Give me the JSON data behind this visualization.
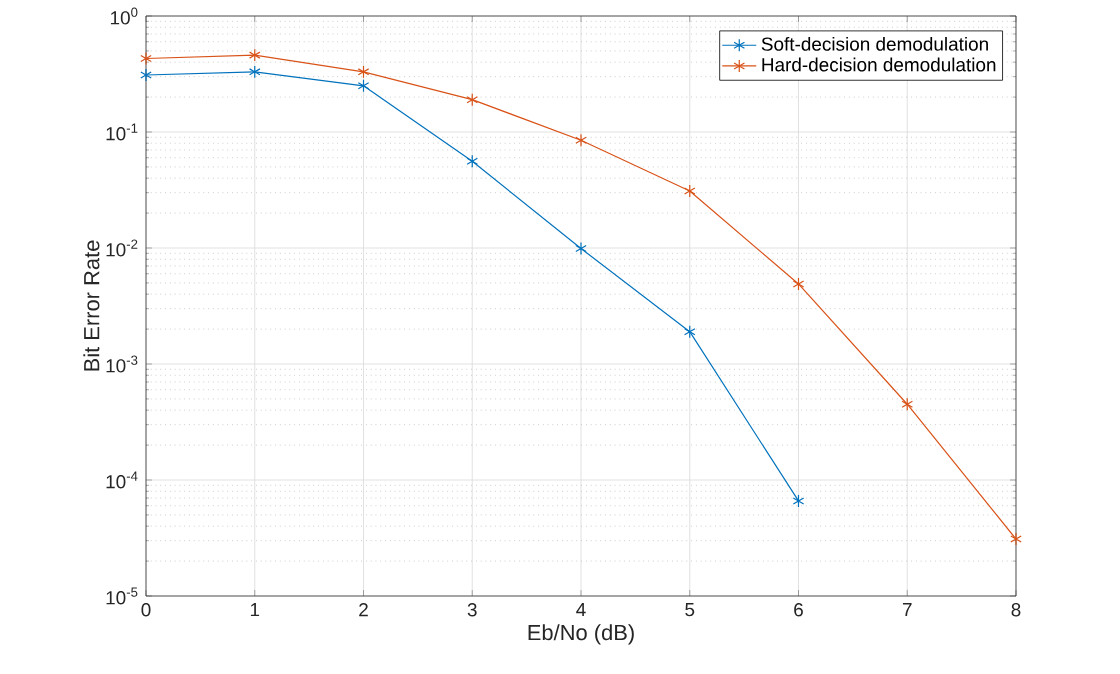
{
  "chart_data": {
    "type": "line",
    "xlabel": "Eb/No (dB)",
    "ylabel": "Bit Error Rate",
    "log": "y",
    "grid": true,
    "legend": "top right",
    "marker": "cross",
    "line_style": "solid",
    "xlim": [
      0,
      8
    ],
    "xticks": [
      0,
      1,
      2,
      3,
      4,
      5,
      6,
      7,
      8
    ],
    "ylim": [
      1e-05,
      1
    ],
    "yticks": [
      {
        "value": 1e-05,
        "label": "10$^{-5}$"
      },
      {
        "value": 0.0001,
        "label": "10$^{-4}$"
      },
      {
        "value": 0.001,
        "label": "10$^{-3}$"
      },
      {
        "value": 0.01,
        "label": "10$^{-2}$"
      },
      {
        "value": 0.1,
        "label": "10$^{-1}$"
      },
      {
        "value": 1,
        "label": "10$^{0}$"
      }
    ],
    "x": [
      0,
      1,
      2,
      3,
      4,
      5,
      6,
      7,
      8
    ],
    "series": [
      {
        "name": "Soft-decision demodulation",
        "color": "#0072bd",
        "values": [
          0.31,
          0.33,
          0.25,
          0.056,
          0.0099,
          0.0019,
          6.6e-05,
          null,
          null
        ]
      },
      {
        "name": "Hard-decision demodulation",
        "color": "#d95319",
        "values": [
          0.43,
          0.46,
          0.33,
          0.19,
          0.085,
          0.031,
          0.0049,
          0.00045,
          3.1e-05
        ]
      }
    ]
  }
}
